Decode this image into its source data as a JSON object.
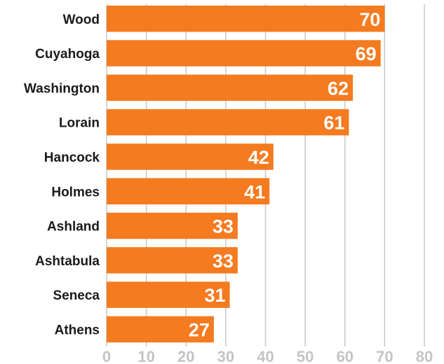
{
  "chart_data": {
    "type": "bar",
    "orientation": "horizontal",
    "categories": [
      "Wood",
      "Cuyahoga",
      "Washington",
      "Lorain",
      "Hancock",
      "Holmes",
      "Ashland",
      "Ashtabula",
      "Seneca",
      "Athens"
    ],
    "values": [
      70,
      69,
      62,
      61,
      42,
      41,
      33,
      33,
      31,
      27
    ],
    "xlim": [
      0,
      80
    ],
    "xticks": [
      0,
      10,
      20,
      30,
      40,
      50,
      60,
      70,
      80
    ],
    "grid": true,
    "bar_color": "#f47b20"
  }
}
